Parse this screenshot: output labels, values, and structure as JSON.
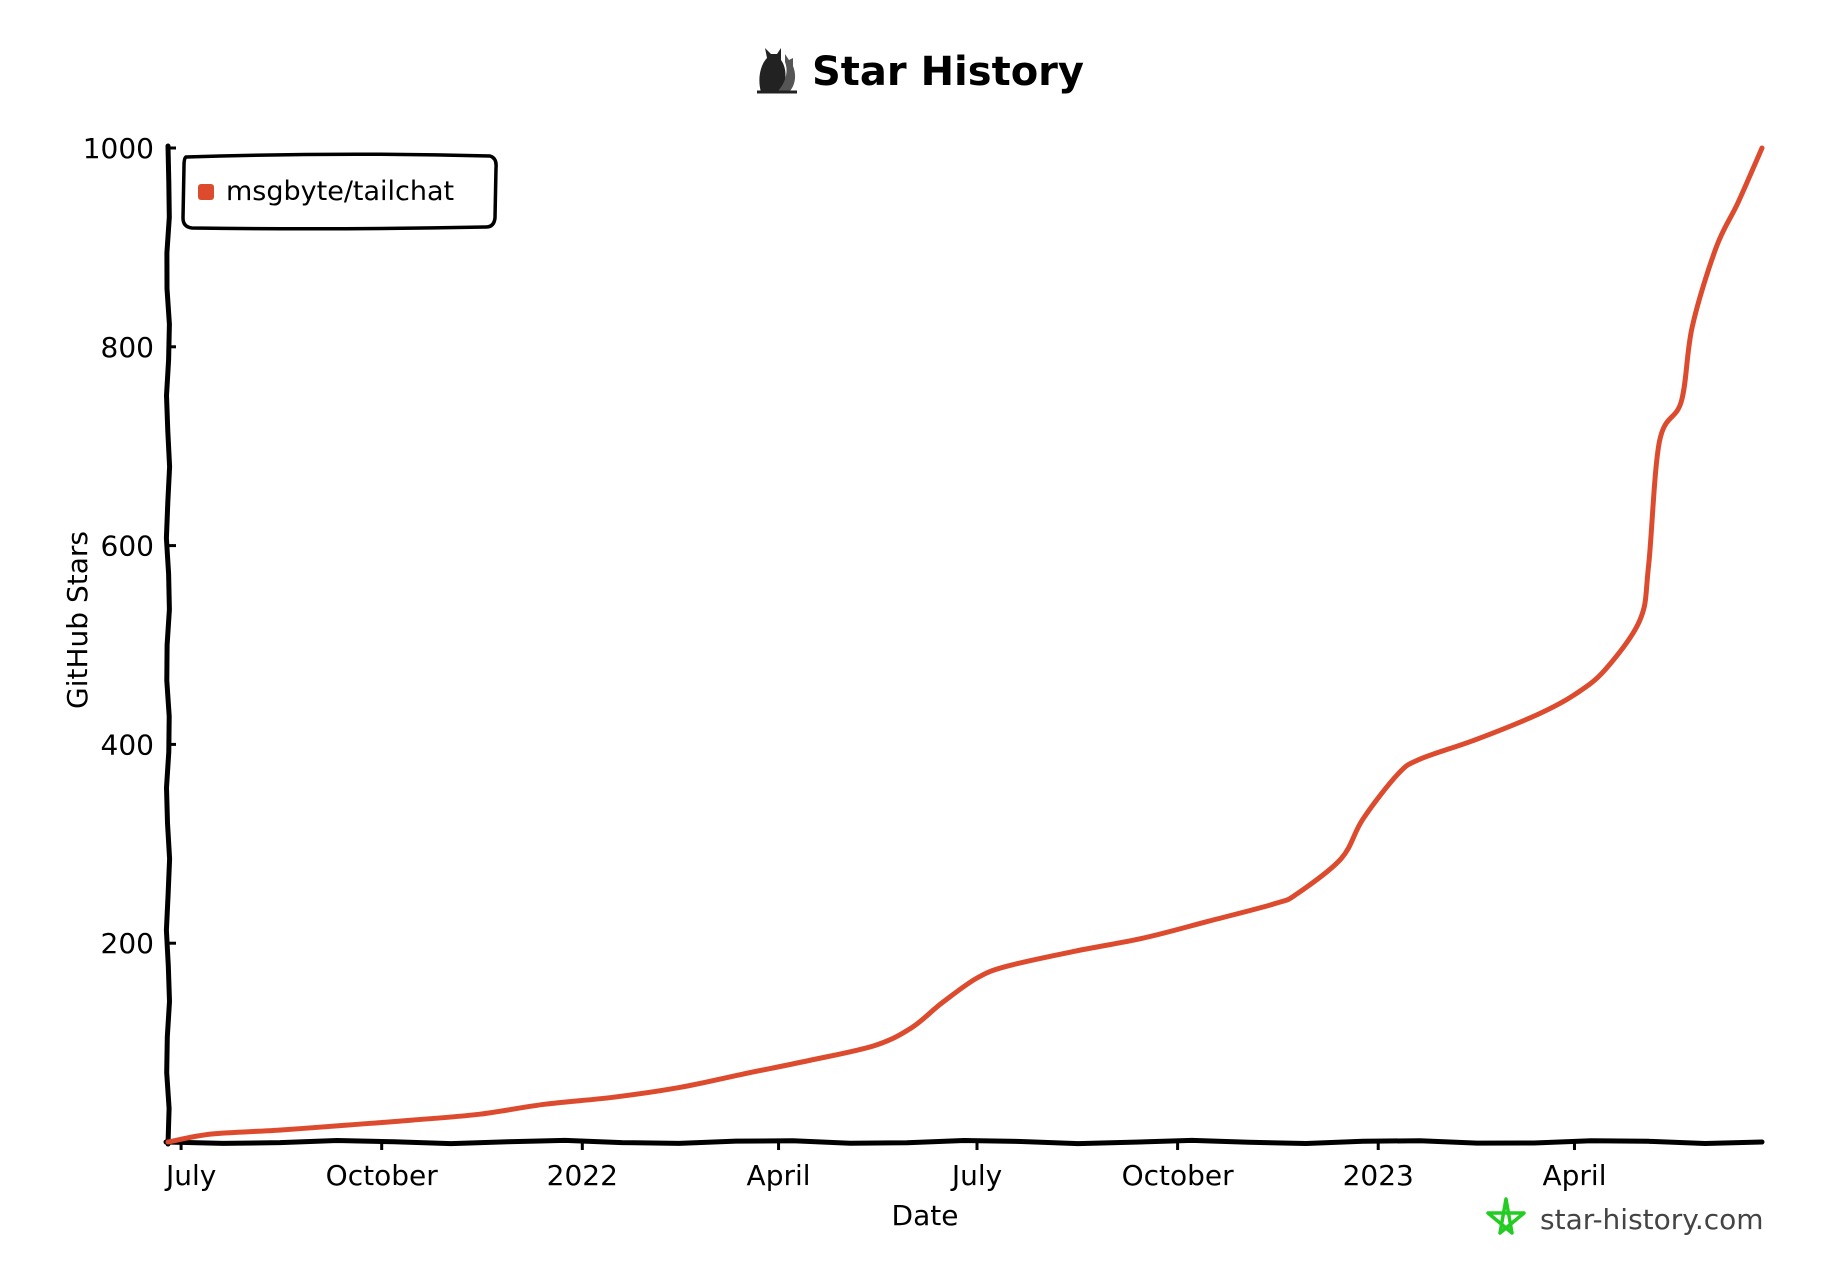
{
  "title": "Star History",
  "watermark": "star-history.com",
  "icons": {
    "title_icon": "cat-icon",
    "watermark_icon": "star-icon"
  },
  "colors": {
    "series": "#dd4b2f",
    "axis": "#000000",
    "watermark_star": "#22cc22"
  },
  "chart_data": {
    "type": "line",
    "title": "Star History",
    "xlabel": "Date",
    "ylabel": "GitHub Stars",
    "x_type": "date",
    "xlim": [
      "2021-06-25",
      "2023-06-26"
    ],
    "ylim": [
      0,
      1000
    ],
    "x_ticks": [
      {
        "date": "2021-07-01",
        "label": "July"
      },
      {
        "date": "2021-10-01",
        "label": "October"
      },
      {
        "date": "2022-01-01",
        "label": "2022"
      },
      {
        "date": "2022-04-01",
        "label": "April"
      },
      {
        "date": "2022-07-01",
        "label": "July"
      },
      {
        "date": "2022-10-01",
        "label": "October"
      },
      {
        "date": "2023-01-01",
        "label": "2023"
      },
      {
        "date": "2023-04-01",
        "label": "April"
      }
    ],
    "y_ticks": [
      {
        "value": 200,
        "label": "200"
      },
      {
        "value": 400,
        "label": "400"
      },
      {
        "value": 600,
        "label": "600"
      },
      {
        "value": 800,
        "label": "800"
      },
      {
        "value": 1000,
        "label": "1000"
      }
    ],
    "grid": false,
    "legend_position": "top-left",
    "series": [
      {
        "name": "msgbyte/tailchat",
        "color": "#dd4b2f",
        "points": [
          {
            "x": "2021-06-25",
            "y": 0
          },
          {
            "x": "2021-07-15",
            "y": 8
          },
          {
            "x": "2021-08-15",
            "y": 12
          },
          {
            "x": "2021-09-15",
            "y": 17
          },
          {
            "x": "2021-10-15",
            "y": 22
          },
          {
            "x": "2021-11-15",
            "y": 28
          },
          {
            "x": "2021-12-15",
            "y": 38
          },
          {
            "x": "2022-01-15",
            "y": 45
          },
          {
            "x": "2022-02-15",
            "y": 55
          },
          {
            "x": "2022-03-15",
            "y": 68
          },
          {
            "x": "2022-04-15",
            "y": 82
          },
          {
            "x": "2022-05-15",
            "y": 97
          },
          {
            "x": "2022-06-01",
            "y": 115
          },
          {
            "x": "2022-06-15",
            "y": 140
          },
          {
            "x": "2022-07-01",
            "y": 165
          },
          {
            "x": "2022-07-15",
            "y": 177
          },
          {
            "x": "2022-08-15",
            "y": 192
          },
          {
            "x": "2022-09-15",
            "y": 205
          },
          {
            "x": "2022-10-15",
            "y": 222
          },
          {
            "x": "2022-11-15",
            "y": 240
          },
          {
            "x": "2022-11-25",
            "y": 250
          },
          {
            "x": "2022-12-15",
            "y": 285
          },
          {
            "x": "2022-12-25",
            "y": 325
          },
          {
            "x": "2023-01-10",
            "y": 370
          },
          {
            "x": "2023-01-20",
            "y": 385
          },
          {
            "x": "2023-02-15",
            "y": 405
          },
          {
            "x": "2023-03-15",
            "y": 430
          },
          {
            "x": "2023-04-01",
            "y": 450
          },
          {
            "x": "2023-04-15",
            "y": 475
          },
          {
            "x": "2023-05-01",
            "y": 525
          },
          {
            "x": "2023-05-05",
            "y": 580
          },
          {
            "x": "2023-05-10",
            "y": 705
          },
          {
            "x": "2023-05-20",
            "y": 745
          },
          {
            "x": "2023-05-25",
            "y": 820
          },
          {
            "x": "2023-06-05",
            "y": 900
          },
          {
            "x": "2023-06-15",
            "y": 945
          },
          {
            "x": "2023-06-26",
            "y": 1000
          }
        ]
      }
    ]
  }
}
